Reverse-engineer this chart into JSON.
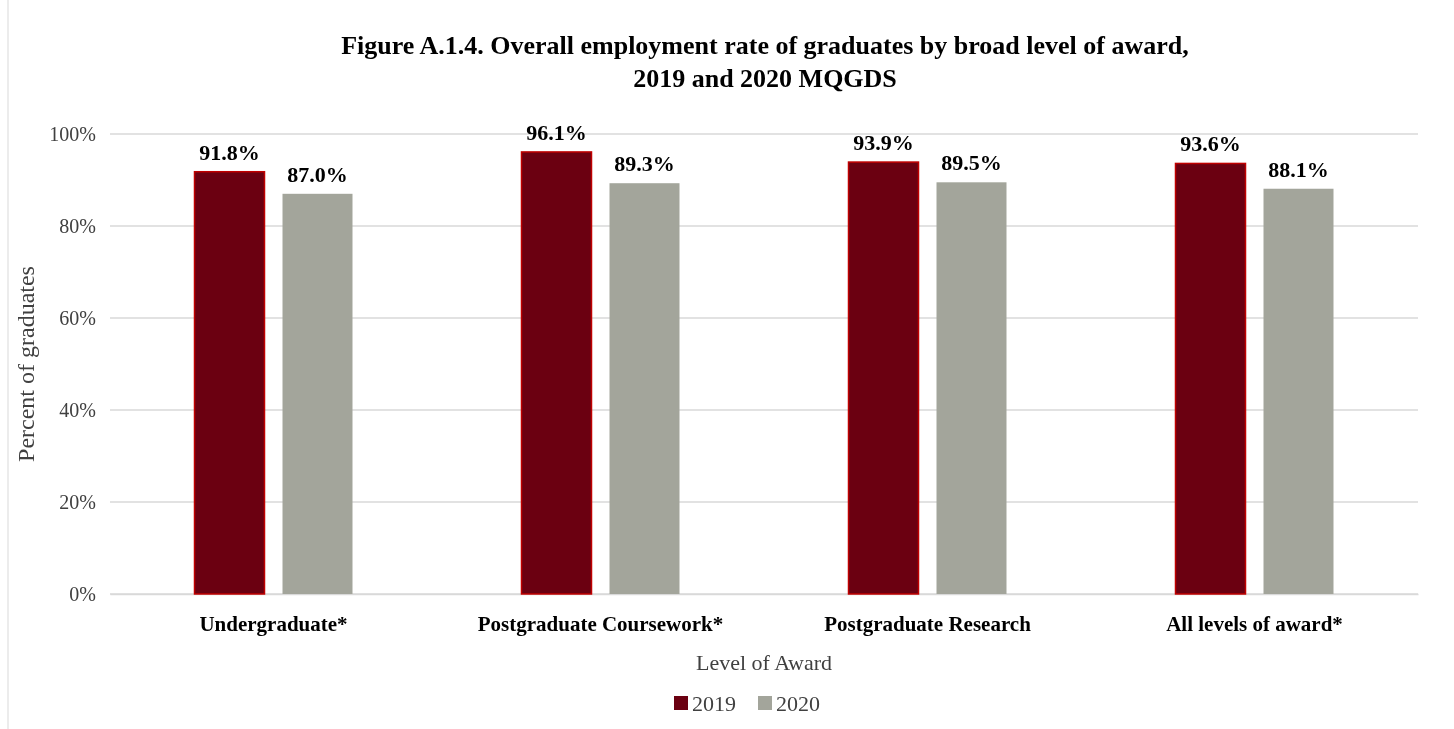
{
  "chart_data": {
    "type": "bar",
    "title": "Figure A.1.4. Overall employment rate of graduates by broad level of award, 2019 and 2020 MQGDS",
    "xlabel": "Level of Award",
    "ylabel": "Percent of graduates",
    "categories": [
      "Undergraduate*",
      "Postgraduate Coursework*",
      "Postgraduate Research",
      "All levels of award*"
    ],
    "series": [
      {
        "name": "2019",
        "color": "#6b0011",
        "values": [
          91.8,
          96.1,
          93.9,
          93.6
        ],
        "value_labels": [
          "91.8%",
          "96.1%",
          "93.9%",
          "93.6%"
        ]
      },
      {
        "name": "2020",
        "color": "#a3a59b",
        "values": [
          87.0,
          89.3,
          89.5,
          88.1
        ],
        "value_labels": [
          "87.0%",
          "89.3%",
          "89.5%",
          "88.1%"
        ]
      }
    ],
    "ylim": [
      0,
      100
    ],
    "yticks": [
      {
        "value": 0,
        "label": "0%"
      },
      {
        "value": 20,
        "label": "20%"
      },
      {
        "value": 40,
        "label": "40%"
      },
      {
        "value": 60,
        "label": "60%"
      },
      {
        "value": 80,
        "label": "80%"
      },
      {
        "value": 100,
        "label": "100%"
      }
    ],
    "grid": "y",
    "legend": "bottom"
  }
}
